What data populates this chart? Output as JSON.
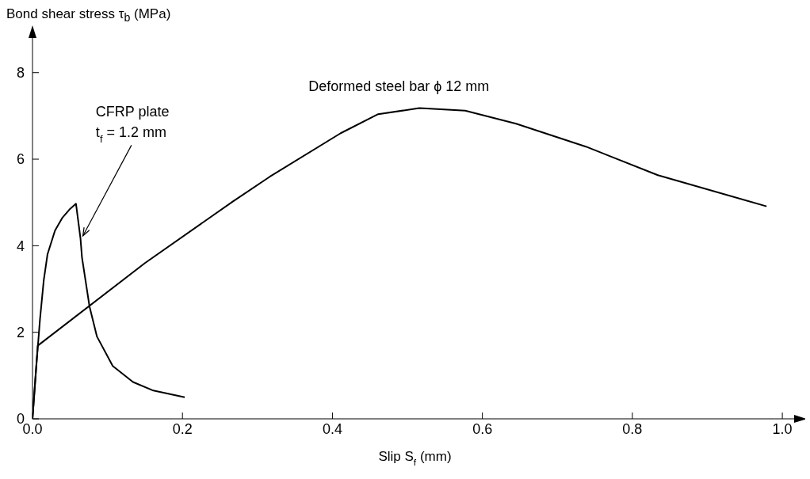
{
  "chart_data": {
    "type": "line",
    "ylabel": "Bond shear stress τ$_{b}$ (MPa)",
    "xlabel": "Slip S$_{f}$ (mm)",
    "xlim": [
      0,
      1.02
    ],
    "xticks": [
      {
        "value": 0,
        "label": "0.0"
      },
      {
        "value": 0.2,
        "label": "0.2"
      },
      {
        "value": 0.4,
        "label": "0.4"
      },
      {
        "value": 0.6,
        "label": "0.6"
      },
      {
        "value": 0.8,
        "label": "0.8"
      },
      {
        "value": 1,
        "label": "1.0"
      }
    ],
    "ylim": [
      0,
      8.8
    ],
    "yticks": [
      0,
      2,
      4,
      6,
      8
    ],
    "series": [
      {
        "name": "CFRP plate\nt$_{f}$ = 1.2 mm",
        "color": "#000000",
        "x": [
          0,
          0.005,
          0.01,
          0.015,
          0.02,
          0.03,
          0.04,
          0.05,
          0.058,
          0.064,
          0.066,
          0.076,
          0.086,
          0.107,
          0.134,
          0.16,
          0.203
        ],
        "values": [
          0,
          1.2,
          2.3,
          3.2,
          3.8,
          4.35,
          4.65,
          4.85,
          4.97,
          4.17,
          3.73,
          2.6,
          1.9,
          1.22,
          0.85,
          0.66,
          0.5
        ]
      },
      {
        "name": "Deformed steel bar ϕ 12 mm",
        "color": "#000000",
        "x": [
          0,
          0.007,
          0.15,
          0.267,
          0.316,
          0.411,
          0.461,
          0.516,
          0.577,
          0.645,
          0.738,
          0.834,
          0.979
        ],
        "values": [
          0,
          1.69,
          3.6,
          5.02,
          5.59,
          6.6,
          7.04,
          7.18,
          7.12,
          6.82,
          6.29,
          5.63,
          4.91
        ]
      }
    ]
  }
}
